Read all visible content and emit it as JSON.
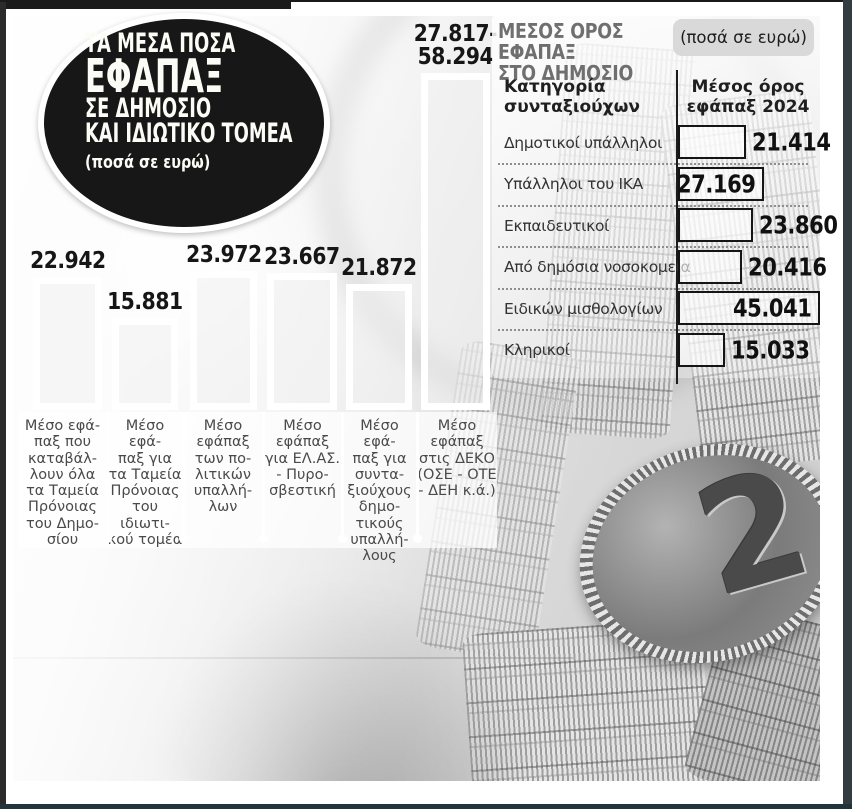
{
  "background": {
    "description": "black-and-white photograph of stacked euro coins",
    "coin_numeral": "2"
  },
  "chart": {
    "badge": {
      "line1": "ΤΑ ΜΕΣΑ ΠΟΣΑ",
      "line2": "ΕΦΑΠΑΞ",
      "line3": "ΣΕ ΔΗΜΟΣΙΟ",
      "line4": "ΚΑΙ ΙΔΙΩΤΙΚΟ ΤΟΜΕΑ",
      "note": "(ποσά σε ευρώ)"
    }
  },
  "chart_data": {
    "type": "bar",
    "title": "ΤΑ ΜΕΣΑ ΠΟΣΑ ΕΦΑΠΑΞ ΣΕ ΔΗΜΟΣΙΟ ΚΑΙ ΙΔΙΩΤΙΚΟ ΤΟΜΕΑ",
    "units": "ποσά σε ευρώ",
    "xlabel": "",
    "ylabel": "",
    "ylim": [
      0,
      60000
    ],
    "grid": false,
    "legend": null,
    "categories": [
      "Μέσο εφάπαξ που καταβάλλουν όλα τα Ταμεία Πρόνοιας του Δημοσίου",
      "Μέσο εφάπαξ για τα Ταμεία Πρόνοιας του ιδιωτικού τομέα",
      "Μέσο εφάπαξ των πολιτικών υπαλλήλων",
      "Μέσο εφάπαξ για ΕΛ.ΑΣ. - Πυροσβεστική",
      "Μέσο εφάπαξ για συνταξιούχους δημοτικούς υπαλλήλους",
      "Μέσο εφάπαξ στις ΔΕΚΟ (ΟΣΕ - ΟΤΕ - ΔΕΗ κ.ά.)"
    ],
    "categories_display": [
      "Μέσο εφά-\nπαξ που\nκαταβάλ-\nλουν όλα\nτα Ταμεία\nΠρόνοιας\nτου Δημο-\nσίου",
      "Μέσο\nεφά-\nπαξ για\nτα Ταμεία\nΠρόνοιας\nτου ιδιωτι-\nκού τομέα",
      "Μέσο\nεφάπαξ\nτων πο-\nλιτικών\nυπαλλή-\nλων",
      "Μέσο\nεφάπαξ\nγια ΕΛ.ΑΣ.\n- Πυρο-\nσβεστική",
      "Μέσο εφά-\nπαξ για\nσυντα-\nξιούχους\nδημο-\nτικούς\nυπαλλή-\nλους",
      "Μέσο\nεφάπαξ\nστις ΔΕΚΟ\n(ΟΣΕ - ΟΤΕ\n- ΔΕΗ κ.ά.)"
    ],
    "values": [
      22942,
      15881,
      23972,
      23667,
      21872,
      58294
    ],
    "last_bar_range": [
      27817,
      58294
    ],
    "value_labels": [
      "22.942",
      "15.881",
      "23.972",
      "23.667",
      "21.872",
      "27.817-\n58.294"
    ]
  },
  "table": {
    "title": "ΜΕΣΟΣ ΟΡΟΣ ΕΦΑΠΑΞ\nΣΤΟ ΔΗΜΟΣΙΟ",
    "note": "(ποσά σε ευρώ)",
    "col_category": "Κατηγορία\nσυνταξιούχων",
    "col_value": "Μέσος όρος\nεφάπαξ 2024",
    "rows": [
      {
        "label": "Δημοτικοί υπάλληλοι",
        "value": "21.414",
        "value_eur": 21414
      },
      {
        "label": "Υπάλληλοι του ΙΚΑ",
        "value": "27.169",
        "value_eur": 27169
      },
      {
        "label": "Εκπαιδευτικοί",
        "value": "23.860",
        "value_eur": 23860
      },
      {
        "label": "Από δημόσια νοσοκομεία",
        "value": "20.416",
        "value_eur": 20416
      },
      {
        "label": "Ειδικών μισθολογίων",
        "value": "45.041",
        "value_eur": 45041
      },
      {
        "label": "Κληρικοί",
        "value": "15.033",
        "value_eur": 15033
      }
    ]
  },
  "colors": {
    "bar_border": "#ffffff",
    "bar_fill": "rgba(240,240,240,0.55)",
    "value_text": "#161616",
    "table_title": "#6f6f6f",
    "frame_dark": "#22333b"
  }
}
